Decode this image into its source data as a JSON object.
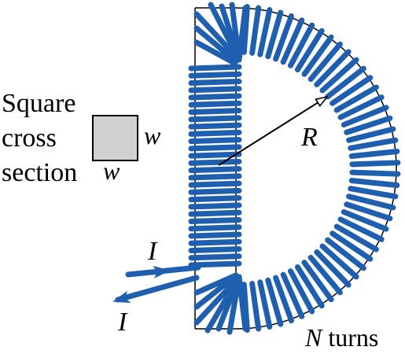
{
  "cross_section_label": {
    "line1": "Square",
    "line2": "cross",
    "line3": "section"
  },
  "dimension_label": "w",
  "radius_label": "R",
  "current_label": "I",
  "turns_label": {
    "symbol": "N",
    "text": " turns"
  },
  "colors": {
    "wire": "#1F5FAF",
    "square_fill": "#D0D0D0",
    "outline": "#000000"
  },
  "icons": {
    "radius_arrow": "radius-arrow-icon",
    "current_arrows": "current-arrow-icon"
  }
}
